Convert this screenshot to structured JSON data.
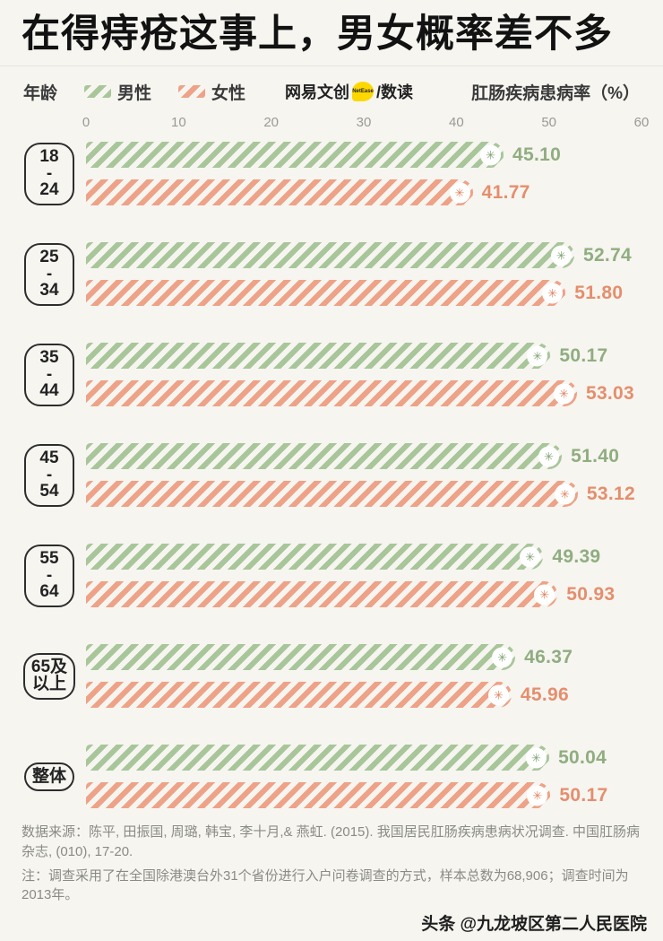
{
  "title": "在得痔疮这事上，男女概率差不多",
  "legend": {
    "age_label": "年龄",
    "male_label": "男性",
    "female_label": "女性",
    "axis_title": "肛肠疾病患病率（%）"
  },
  "brand": {
    "name": "网易文创",
    "badge": "NetEase",
    "suffix": "/数读"
  },
  "icons": {
    "bar_cap_star": "✳︎"
  },
  "colors": {
    "page_bg": "#f6f5f0",
    "male_bar": "#a8c69a",
    "male_text": "#90ad80",
    "male_star": "#7fa071",
    "female_bar": "#eea287",
    "female_text": "#e58e6d",
    "female_star": "#e0805c",
    "brand_badge": "#fcd800"
  },
  "chart_data": {
    "type": "bar",
    "orientation": "horizontal",
    "title": "在得痔疮这事上，男女概率差不多",
    "xlabel": "肛肠疾病患病率（%）",
    "ylabel": "年龄",
    "xlim": [
      0,
      60
    ],
    "x_ticks": [
      "0",
      "10",
      "20",
      "30",
      "40",
      "50",
      "60"
    ],
    "grid": false,
    "legend_position": "top",
    "categories": [
      "18-24",
      "25-34",
      "35-44",
      "45-54",
      "55-64",
      "65及以上",
      "整体"
    ],
    "category_display": [
      "18\n-\n24",
      "25\n-\n34",
      "35\n-\n44",
      "45\n-\n54",
      "55\n-\n64",
      "65及\n以上",
      "整体"
    ],
    "series": [
      {
        "name": "男性",
        "values": [
          45.1,
          52.74,
          50.17,
          51.4,
          49.39,
          46.37,
          50.04
        ]
      },
      {
        "name": "女性",
        "values": [
          41.77,
          51.8,
          53.03,
          53.12,
          50.93,
          45.96,
          50.17
        ]
      }
    ],
    "value_format": "2dp"
  },
  "footer": {
    "source": "数据来源：陈平, 田振国, 周璐, 韩宝, 李十月,& 燕虹. (2015). 我国居民肛肠疾病患病状况调查. 中国肛肠病杂志, (010), 17-20.",
    "note": "注：调查采用了在全国除港澳台外31个省份进行入户问卷调查的方式，样本总数为68,906；调查时间为2013年。",
    "watermark": "头条 @九龙坡区第二人民医院"
  }
}
